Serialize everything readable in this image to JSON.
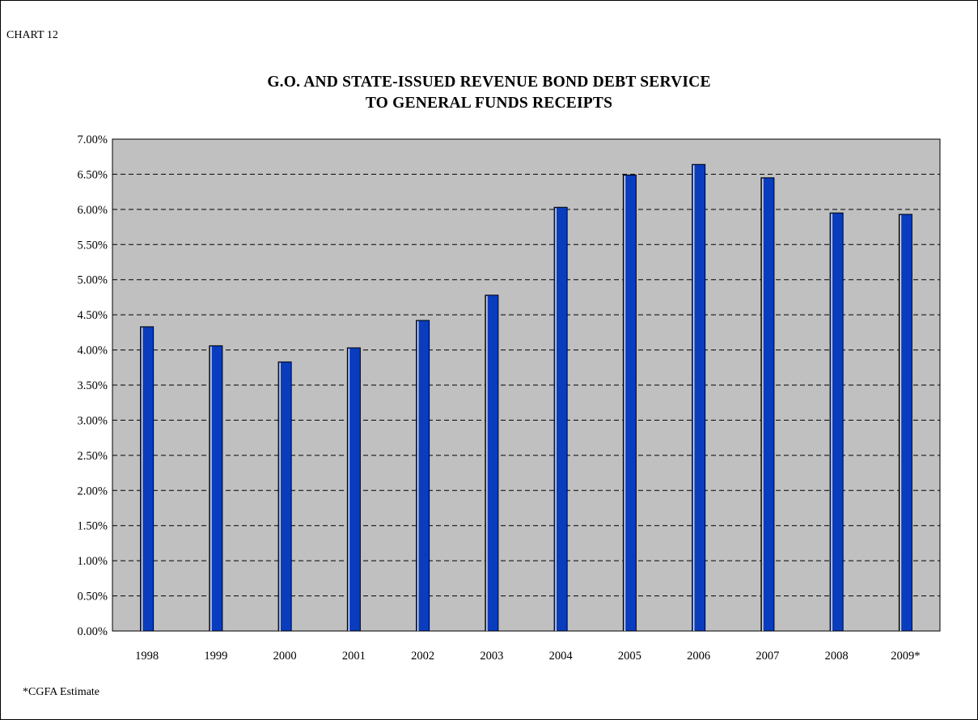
{
  "chart_label": "CHART 12",
  "footnote": "*CGFA Estimate",
  "colors": {
    "plot_bg": "#c0c0c0",
    "bar_fill": "#0a3cbe",
    "bar_edge": "#000000",
    "grid": "#000000"
  },
  "chart_data": {
    "type": "bar",
    "title": "G.O. AND STATE-ISSUED REVENUE BOND DEBT SERVICE",
    "subtitle": "TO GENERAL FUNDS RECEIPTS",
    "xlabel": "",
    "ylabel": "",
    "categories": [
      "1998",
      "1999",
      "2000",
      "2001",
      "2002",
      "2003",
      "2004",
      "2005",
      "2006",
      "2007",
      "2008",
      "2009*"
    ],
    "values": [
      4.33,
      4.06,
      3.83,
      4.03,
      4.42,
      4.78,
      6.03,
      6.49,
      6.64,
      6.45,
      5.95,
      5.93
    ],
    "ylim": [
      0,
      7
    ],
    "y_ticks": [
      "0.00%",
      "0.50%",
      "1.00%",
      "1.50%",
      "2.00%",
      "2.50%",
      "3.00%",
      "3.50%",
      "4.00%",
      "4.50%",
      "5.00%",
      "5.50%",
      "6.00%",
      "6.50%",
      "7.00%"
    ],
    "grid": "dashed horizontal",
    "legend": "none"
  }
}
